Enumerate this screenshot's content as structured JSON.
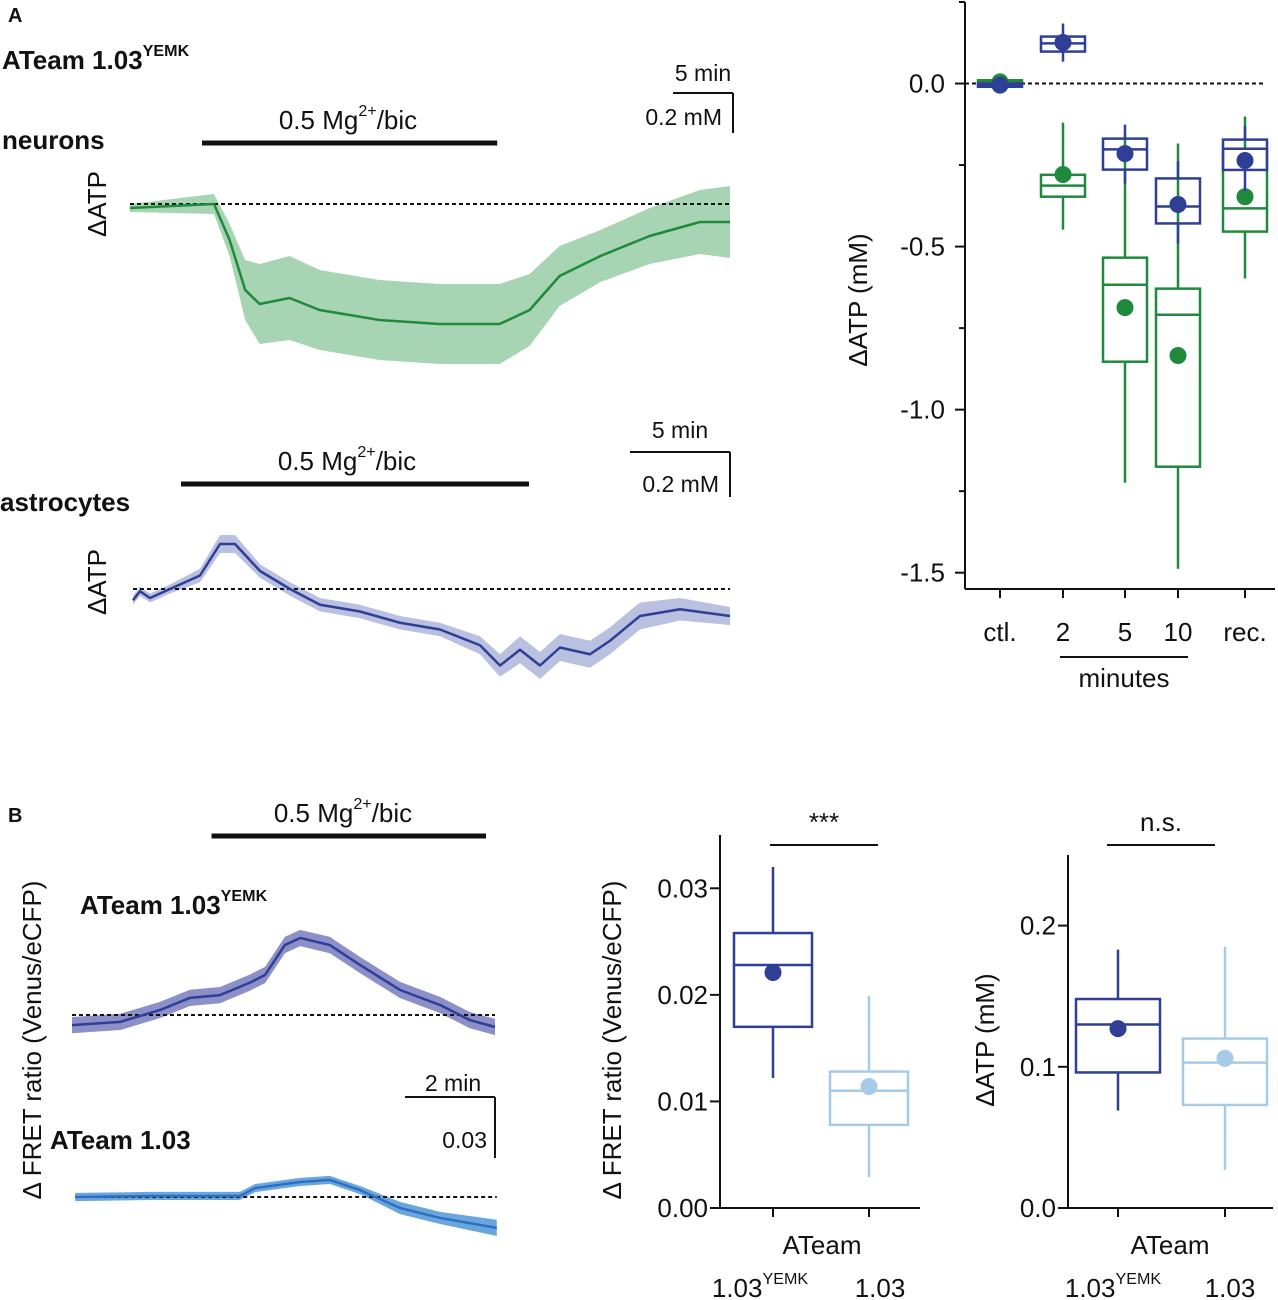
{
  "panels": [
    "A",
    "B"
  ],
  "chart_data": [
    {
      "type": "line",
      "title": {
        "main": "ATeam 1.03",
        "sup": "YEMK"
      },
      "ylabel": "ΔATP",
      "stim": [
        6,
        30.6
      ],
      "stim_label": {
        "main": "0.5 Mg",
        "sup": "2+",
        "rest": "/bic"
      },
      "scalebar": {
        "x": {
          "value": 5,
          "label": "5 min"
        },
        "y": {
          "value": 0.2,
          "label": "0.2 mM"
        }
      },
      "series": [
        {
          "name": "neurons",
          "label_color": "#3b9a4f",
          "color": "#1f8a3b",
          "band_color": "#a7d5b3",
          "x": [
            0,
            7,
            8.3,
            9.6,
            10.8,
            13.3,
            15.8,
            20.8,
            25.8,
            30.8,
            33.3,
            35.8,
            39.2,
            43.3,
            47.5,
            50
          ],
          "values": [
            -0.02,
            0,
            -0.18,
            -0.43,
            -0.5,
            -0.47,
            -0.53,
            -0.58,
            -0.6,
            -0.6,
            -0.53,
            -0.36,
            -0.26,
            -0.16,
            -0.09,
            -0.09
          ],
          "errors": [
            0.02,
            0.05,
            0.08,
            0.15,
            0.2,
            0.21,
            0.2,
            0.2,
            0.2,
            0.2,
            0.18,
            0.15,
            0.13,
            0.14,
            0.16,
            0.18
          ]
        }
      ]
    },
    {
      "type": "line",
      "ylabel": "ΔATP",
      "stim": [
        2.4,
        19.8
      ],
      "stim_label": {
        "main": "0.5 Mg",
        "sup": "2+",
        "rest": "/bic"
      },
      "scalebar": {
        "x": {
          "value": 5,
          "label": "5 min"
        },
        "y": {
          "value": 0.2,
          "label": "0.2 mM"
        }
      },
      "series": [
        {
          "name": "astrocytes",
          "label_color": "#4a84c6",
          "color": "#2e3f95",
          "band_color": "#b9c0e0",
          "x": [
            0,
            0.35,
            0.85,
            1.85,
            3.35,
            4.35,
            5.1,
            6.35,
            7.85,
            9.35,
            11.35,
            13.35,
            15.35,
            17.35,
            18.35,
            19.35,
            20.35,
            21.35,
            22.85,
            23.85,
            25.35,
            27.35,
            29.85
          ],
          "values": [
            -0.05,
            -0.01,
            -0.04,
            0,
            0.06,
            0.2,
            0.2,
            0.08,
            0,
            -0.07,
            -0.1,
            -0.15,
            -0.18,
            -0.25,
            -0.34,
            -0.27,
            -0.34,
            -0.26,
            -0.29,
            -0.23,
            -0.12,
            -0.09,
            -0.12
          ],
          "errors": [
            0.02,
            0.02,
            0.02,
            0.02,
            0.03,
            0.04,
            0.04,
            0.03,
            0.03,
            0.03,
            0.03,
            0.03,
            0.03,
            0.04,
            0.05,
            0.06,
            0.06,
            0.06,
            0.06,
            0.06,
            0.06,
            0.05,
            0.04
          ]
        }
      ]
    },
    {
      "type": "box",
      "ylabel": "ΔATP (mM)",
      "ylim": [
        -1.55,
        0.25
      ],
      "yticks": [
        {
          "value": 0,
          "label": "0.0"
        },
        -0.5,
        {
          "value": -1,
          "label": "-1.0"
        },
        -1.5
      ],
      "minor_yticks": [
        0.25,
        -0.25,
        -0.75,
        -1.25
      ],
      "zero_line": true,
      "categories": [
        "ctl.",
        "2",
        "5",
        "10",
        "rec."
      ],
      "group_label": "minutes",
      "series": [
        {
          "color": "#1f8a3b",
          "min": [
            -0.005,
            -0.448,
            -1.224,
            -1.488,
            -0.598
          ],
          "q1": [
            0,
            -0.347,
            -0.853,
            -1.175,
            -0.454
          ],
          "median": [
            0.005,
            -0.313,
            -0.617,
            -0.709,
            -0.383
          ],
          "q3": [
            0.01,
            -0.28,
            -0.534,
            -0.629,
            -0.2
          ],
          "max": [
            0.015,
            -0.12,
            -0.156,
            -0.184,
            -0.101
          ],
          "mean": [
            0.005,
            -0.279,
            -0.687,
            -0.834,
            -0.347
          ]
        },
        {
          "color": "#2e3f95",
          "min": [
            -0.01,
            0.067,
            -0.307,
            -0.491,
            -0.33
          ],
          "q1": [
            -0.01,
            0.098,
            -0.264,
            -0.429,
            -0.265
          ],
          "median": [
            -0.005,
            0.123,
            -0.202,
            -0.377,
            -0.2
          ],
          "q3": [
            0,
            0.144,
            -0.169,
            -0.291,
            -0.172
          ],
          "max": [
            0.005,
            0.184,
            -0.126,
            -0.239,
            -0.13
          ],
          "mean": [
            -0.005,
            0.126,
            -0.215,
            -0.371,
            -0.236
          ]
        }
      ]
    },
    {
      "type": "line",
      "ylabel": "Δ FRET ratio (Venus/eCFP)",
      "stim": [
        3.1,
        9.2
      ],
      "stim_label": {
        "main": "0.5 Mg",
        "sup": "2+",
        "rest": "/bic"
      },
      "scalebar": {
        "x": {
          "value": 2,
          "label": "2 min"
        },
        "y": 0.03
      },
      "series": [
        {
          "name": {
            "main": "ATeam 1.03",
            "sup": "YEMK"
          },
          "label_color": "#2e3f95",
          "color": "#2e3f95",
          "band_color": "#8d8fc9",
          "x": [
            0,
            1.07,
            1.96,
            2.62,
            3.29,
            3.96,
            4.29,
            4.73,
            5.07,
            5.73,
            6.4,
            7.29,
            8.18,
            8.84,
            9.4
          ],
          "values": [
            -0.005,
            -0.0034,
            0.0025,
            0.0084,
            0.0098,
            0.016,
            0.0197,
            0.0344,
            0.0379,
            0.0344,
            0.0246,
            0.0123,
            0.0049,
            -0.0025,
            -0.0059
          ],
          "errors": [
            0.004,
            0.004,
            0.004,
            0.004,
            0.004,
            0.004,
            0.004,
            0.004,
            0.004,
            0.004,
            0.004,
            0.004,
            0.004,
            0.004,
            0.004
          ]
        },
        {
          "name": "ATeam 1.03",
          "label_color": "#4a84c6",
          "color": "#2f6fbf",
          "band_color": "#6aa6de",
          "x": [
            0.07,
            1.73,
            3.73,
            4.07,
            5.07,
            5.73,
            6.4,
            7.29,
            8.18,
            9.44
          ],
          "values": [
            0,
            0.0005,
            0.0005,
            0.0044,
            0.0074,
            0.0084,
            0.0034,
            -0.0054,
            -0.0103,
            -0.0152
          ],
          "errors": [
            0.002,
            0.002,
            0.002,
            0.002,
            0.002,
            0.002,
            0.002,
            0.003,
            0.003,
            0.004
          ]
        }
      ]
    },
    {
      "type": "box",
      "ylabel": "Δ FRET ratio (Venus/eCFP)",
      "ylim": [
        0,
        0.035
      ],
      "yticks": [
        {
          "value": 0,
          "label": "0.00"
        },
        0.01,
        0.02,
        0.03
      ],
      "xlabel": "ATeam",
      "categories": [
        {
          "main": "1.03",
          "sup": "YEMK"
        },
        "1.03"
      ],
      "significance": "***",
      "series": [
        {
          "colors": [
            "#2e3f95",
            "#a6cbe8"
          ],
          "min": [
            0.0122,
            0.0029
          ],
          "q1": [
            0.017,
            0.0078
          ],
          "median": [
            0.0228,
            0.011
          ],
          "q3": [
            0.0258,
            0.0128
          ],
          "max": [
            0.032,
            0.0199
          ],
          "mean": [
            0.0221,
            0.0114
          ]
        }
      ]
    },
    {
      "type": "box",
      "ylabel": "ΔATP (mM)",
      "ylim": [
        0,
        0.25
      ],
      "yticks": [
        {
          "value": 0,
          "label": "0.0"
        },
        0.1,
        0.2
      ],
      "xlabel": "ATeam",
      "categories": [
        {
          "main": "1.03",
          "sup": "YEMK"
        },
        "1.03"
      ],
      "significance": "n.s.",
      "series": [
        {
          "colors": [
            "#2e3f95",
            "#a6cbe8"
          ],
          "min": [
            0.069,
            0.027
          ],
          "q1": [
            0.096,
            0.073
          ],
          "median": [
            0.13,
            0.103
          ],
          "q3": [
            0.148,
            0.12
          ],
          "max": [
            0.183,
            0.185
          ],
          "mean": [
            0.127,
            0.106
          ]
        }
      ]
    }
  ]
}
